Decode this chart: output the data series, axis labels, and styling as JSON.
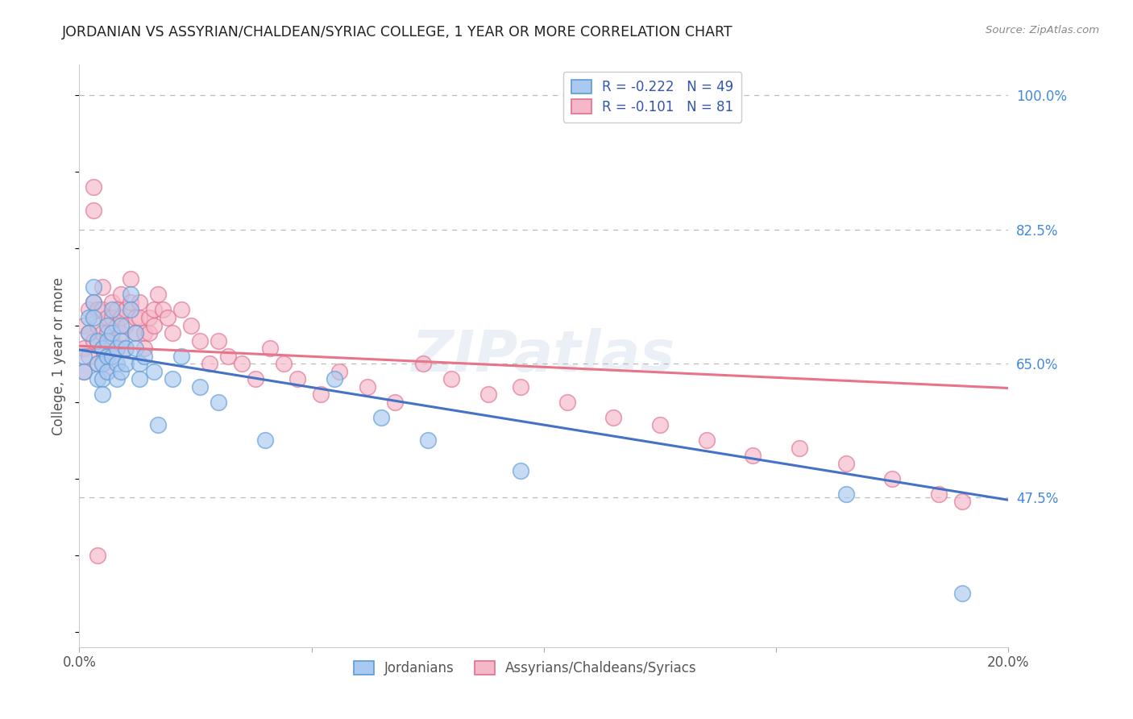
{
  "title": "JORDANIAN VS ASSYRIAN/CHALDEAN/SYRIAC COLLEGE, 1 YEAR OR MORE CORRELATION CHART",
  "source": "Source: ZipAtlas.com",
  "ylabel": "College, 1 year or more",
  "xlim": [
    0.0,
    0.2
  ],
  "ylim": [
    0.28,
    1.04
  ],
  "xticks": [
    0.0,
    0.05,
    0.1,
    0.15,
    0.2
  ],
  "xticklabels": [
    "0.0%",
    "",
    "",
    "",
    "20.0%"
  ],
  "ytick_positions": [
    0.475,
    0.65,
    0.825,
    1.0
  ],
  "ytick_labels": [
    "47.5%",
    "65.0%",
    "82.5%",
    "100.0%"
  ],
  "legend_labels": [
    "Jordanians",
    "Assyrians/Chaldeans/Syriacs"
  ],
  "blue_fill": "#aac9f0",
  "blue_edge": "#5b9bd5",
  "pink_fill": "#f5b8c8",
  "pink_edge": "#e07090",
  "blue_line": "#4472c4",
  "pink_line": "#e8748a",
  "R_blue": -0.222,
  "N_blue": 49,
  "R_pink": -0.101,
  "N_pink": 81,
  "legend_text_color": "#3355aa",
  "title_color": "#222222",
  "label_color": "#555555",
  "right_tick_color": "#4488dd",
  "grid_color": "#bbbbbb",
  "bg_color": "#ffffff",
  "blue_line_x0": 0.0,
  "blue_line_y0": 0.668,
  "blue_line_x1": 0.2,
  "blue_line_y1": 0.472,
  "pink_line_x0": 0.0,
  "pink_line_y0": 0.673,
  "pink_line_x1": 0.2,
  "pink_line_y1": 0.618,
  "blue_x": [
    0.001,
    0.001,
    0.002,
    0.002,
    0.003,
    0.003,
    0.003,
    0.004,
    0.004,
    0.004,
    0.005,
    0.005,
    0.005,
    0.005,
    0.006,
    0.006,
    0.006,
    0.006,
    0.007,
    0.007,
    0.007,
    0.008,
    0.008,
    0.008,
    0.009,
    0.009,
    0.009,
    0.01,
    0.01,
    0.011,
    0.011,
    0.012,
    0.012,
    0.013,
    0.013,
    0.014,
    0.016,
    0.017,
    0.02,
    0.022,
    0.026,
    0.03,
    0.04,
    0.055,
    0.065,
    0.075,
    0.095,
    0.165,
    0.19
  ],
  "blue_y": [
    0.66,
    0.64,
    0.71,
    0.69,
    0.75,
    0.73,
    0.71,
    0.68,
    0.65,
    0.63,
    0.67,
    0.65,
    0.63,
    0.61,
    0.7,
    0.68,
    0.66,
    0.64,
    0.72,
    0.69,
    0.66,
    0.67,
    0.65,
    0.63,
    0.7,
    0.68,
    0.64,
    0.67,
    0.65,
    0.74,
    0.72,
    0.69,
    0.67,
    0.65,
    0.63,
    0.66,
    0.64,
    0.57,
    0.63,
    0.66,
    0.62,
    0.6,
    0.55,
    0.63,
    0.58,
    0.55,
    0.51,
    0.48,
    0.35
  ],
  "pink_x": [
    0.001,
    0.001,
    0.001,
    0.002,
    0.002,
    0.002,
    0.003,
    0.003,
    0.003,
    0.003,
    0.004,
    0.004,
    0.004,
    0.004,
    0.005,
    0.005,
    0.005,
    0.005,
    0.006,
    0.006,
    0.006,
    0.006,
    0.007,
    0.007,
    0.007,
    0.007,
    0.008,
    0.008,
    0.008,
    0.009,
    0.009,
    0.009,
    0.01,
    0.01,
    0.01,
    0.011,
    0.011,
    0.012,
    0.012,
    0.013,
    0.013,
    0.014,
    0.014,
    0.015,
    0.015,
    0.016,
    0.016,
    0.017,
    0.018,
    0.019,
    0.02,
    0.022,
    0.024,
    0.026,
    0.028,
    0.03,
    0.032,
    0.035,
    0.038,
    0.041,
    0.044,
    0.047,
    0.052,
    0.056,
    0.062,
    0.068,
    0.074,
    0.08,
    0.088,
    0.095,
    0.105,
    0.115,
    0.125,
    0.135,
    0.145,
    0.155,
    0.165,
    0.175,
    0.185,
    0.19,
    0.004
  ],
  "pink_y": [
    0.7,
    0.67,
    0.64,
    0.72,
    0.69,
    0.66,
    0.88,
    0.85,
    0.73,
    0.68,
    0.72,
    0.7,
    0.68,
    0.65,
    0.75,
    0.72,
    0.69,
    0.67,
    0.71,
    0.69,
    0.66,
    0.64,
    0.73,
    0.71,
    0.68,
    0.66,
    0.72,
    0.7,
    0.67,
    0.74,
    0.71,
    0.69,
    0.72,
    0.7,
    0.67,
    0.76,
    0.73,
    0.71,
    0.69,
    0.73,
    0.71,
    0.69,
    0.67,
    0.71,
    0.69,
    0.72,
    0.7,
    0.74,
    0.72,
    0.71,
    0.69,
    0.72,
    0.7,
    0.68,
    0.65,
    0.68,
    0.66,
    0.65,
    0.63,
    0.67,
    0.65,
    0.63,
    0.61,
    0.64,
    0.62,
    0.6,
    0.65,
    0.63,
    0.61,
    0.62,
    0.6,
    0.58,
    0.57,
    0.55,
    0.53,
    0.54,
    0.52,
    0.5,
    0.48,
    0.47,
    0.4
  ]
}
